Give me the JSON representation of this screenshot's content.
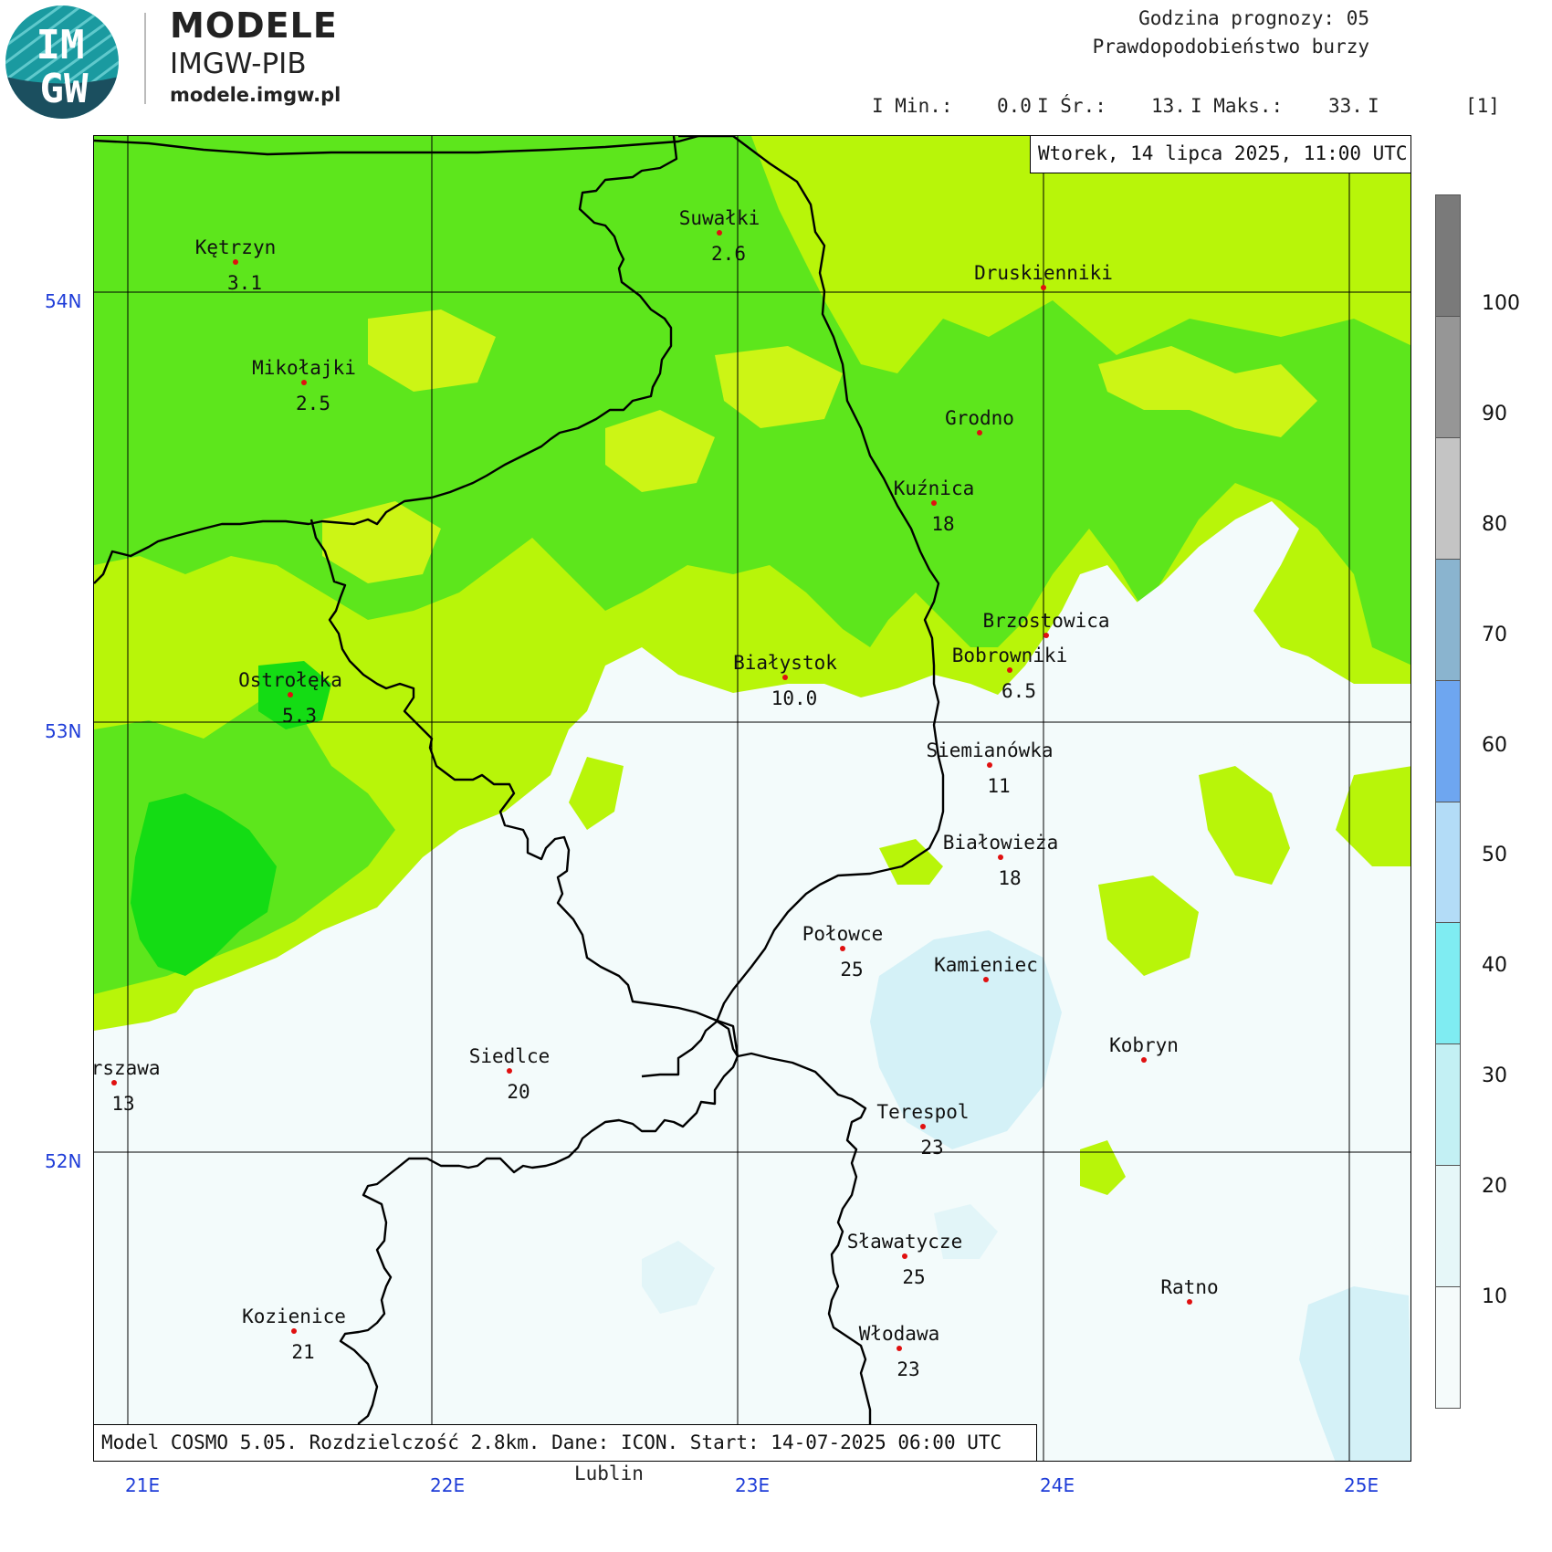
{
  "logo": {
    "badge_letters": "IMGW",
    "badge_top": "IM",
    "badge_bottom": "GW",
    "title": "MODELE",
    "subtitle": "IMGW-PIB",
    "url": "modele.imgw.pl"
  },
  "header": {
    "forecast_hour_label": "Godzina prognozy: 05",
    "product": "Prawdopodobieństwo burzy",
    "stats": {
      "min_label": "I Min.:",
      "min_value": "0.0",
      "avg_label": "I Śr.:",
      "avg_value": "13.",
      "max_label": "I Maks.:",
      "max_value": "33.",
      "end_bar": "I",
      "unit": "[1]"
    },
    "datetime": "Wtorek, 14 lipca 2025, 11:00 UTC"
  },
  "footer": {
    "model_info": "Model COSMO 5.05. Rozdzielczość 2.8km. Dane: ICON. Start: 14-07-2025 06:00 UTC"
  },
  "axes": {
    "lat_labels": [
      "54N",
      "53N",
      "52N"
    ],
    "lon_labels": [
      "21E",
      "22E",
      "23E",
      "24E",
      "25E"
    ]
  },
  "legend": {
    "values": [
      "100",
      "90",
      "80",
      "70",
      "60",
      "50",
      "40",
      "30",
      "20",
      "10"
    ],
    "colors": [
      "#7a7a7a",
      "#969696",
      "#c4c4c4",
      "#8ab4cf",
      "#6ea6f0",
      "#b3dcf7",
      "#7fecf2",
      "#c3f0f4",
      "#e6f7f8",
      "#f5fbfb"
    ]
  },
  "cities": [
    {
      "name": "Kętrzyn",
      "value": "3.1"
    },
    {
      "name": "Suwałki",
      "value": "2.6"
    },
    {
      "name": "Druskienniki",
      "value": ""
    },
    {
      "name": "Mikołajki",
      "value": "2.5"
    },
    {
      "name": "Grodno",
      "value": ""
    },
    {
      "name": "Kuźnica",
      "value": "18"
    },
    {
      "name": "Brzostowica",
      "value": ""
    },
    {
      "name": "Bobrowniki",
      "value": "6.5"
    },
    {
      "name": "Białystok",
      "value": "10.0"
    },
    {
      "name": "Ostrołęka",
      "value": "5.3"
    },
    {
      "name": "Siemianówka",
      "value": "11"
    },
    {
      "name": "Białowieża",
      "value": "18"
    },
    {
      "name": "Połowce",
      "value": "25"
    },
    {
      "name": "Kamieniec",
      "value": ""
    },
    {
      "name": "Warszawa",
      "value": "13"
    },
    {
      "name": "Siedlce",
      "value": "20"
    },
    {
      "name": "Kobryn",
      "value": ""
    },
    {
      "name": "Terespol",
      "value": "23"
    },
    {
      "name": "Sławatycze",
      "value": "25"
    },
    {
      "name": "Ratno",
      "value": ""
    },
    {
      "name": "Kozienice",
      "value": "21"
    },
    {
      "name": "Włodawa",
      "value": "23"
    },
    {
      "name": "Lublin",
      "value": ""
    }
  ],
  "colors": {
    "green_dark": "#14dc14",
    "green_mid": "#5de61c",
    "green_light": "#b8f509",
    "green_pale": "#ccf515",
    "low": "#f3fbfb",
    "low_blue": "#d4f1f7",
    "city_dot": "#e01010",
    "coord_text": "#1f3dd8"
  }
}
